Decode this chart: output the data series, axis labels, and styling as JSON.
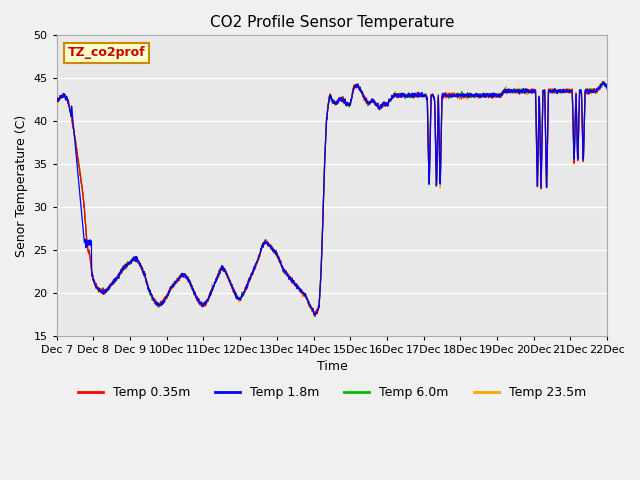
{
  "title": "CO2 Profile Sensor Temperature",
  "ylabel": "Senor Temperature (C)",
  "xlabel": "Time",
  "ylim": [
    15,
    50
  ],
  "yticks": [
    15,
    20,
    25,
    30,
    35,
    40,
    45,
    50
  ],
  "line_colors": {
    "t035": "#ff0000",
    "t18": "#0000ff",
    "t60": "#00bb00",
    "t235": "#ffa500"
  },
  "legend_labels": [
    "Temp 0.35m",
    "Temp 1.8m",
    "Temp 6.0m",
    "Temp 23.5m"
  ],
  "legend_colors": [
    "#ff0000",
    "#0000ff",
    "#00bb00",
    "#ffa500"
  ],
  "annotation_text": "TZ_co2prof",
  "annotation_bg": "#ffffcc",
  "annotation_border": "#cc8800",
  "facecolor": "#e8e8e8"
}
